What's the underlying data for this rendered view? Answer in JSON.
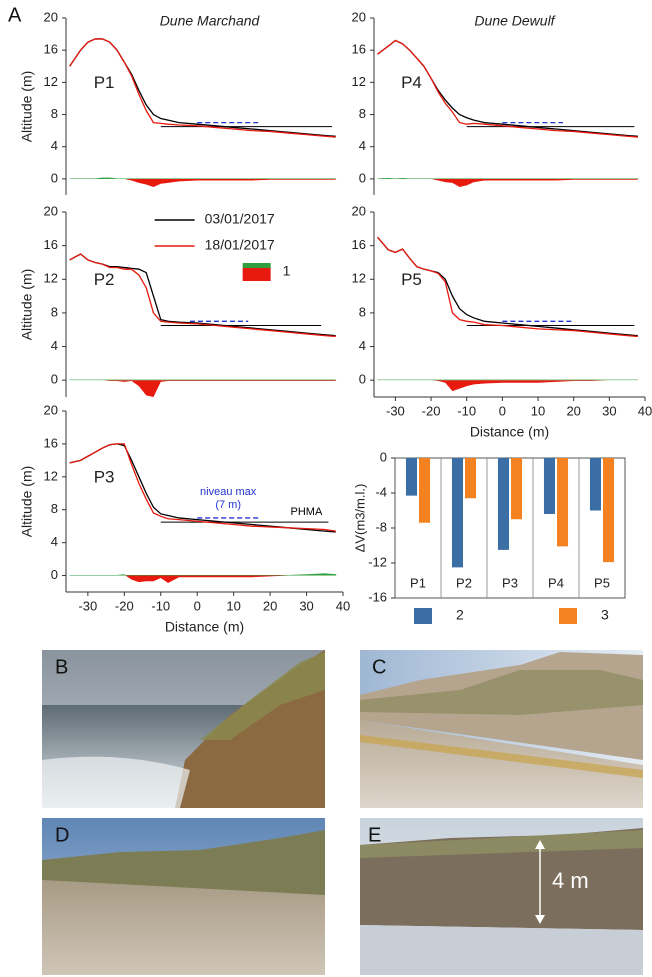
{
  "panel_label": "A",
  "chart_data": [
    {
      "type": "line",
      "label": "P1",
      "title": "Dune Marchand",
      "ylabel": "Altitude (m)",
      "x": [
        -35,
        -32,
        -30,
        -28,
        -26,
        -24,
        -22,
        -20,
        -18,
        -16,
        -14,
        -12,
        -10,
        -8,
        -5,
        0,
        5,
        10,
        15,
        20,
        25,
        30,
        35,
        38
      ],
      "xlim": [
        -36,
        40
      ],
      "ylim": [
        -2,
        20
      ],
      "yticks": [
        0,
        4,
        8,
        12,
        16,
        20
      ],
      "series": [
        {
          "color": "#000000",
          "values": [
            14,
            16,
            17,
            17.4,
            17.4,
            17,
            16,
            14.5,
            13,
            11,
            9.2,
            8,
            7.5,
            7.3,
            7,
            6.8,
            6.6,
            6.4,
            6.2,
            6,
            5.8,
            5.6,
            5.4,
            5.3
          ]
        },
        {
          "color": "#e8190f",
          "values": [
            14,
            16,
            17,
            17.4,
            17.4,
            17,
            16,
            14.5,
            12.8,
            10.5,
            8.5,
            7,
            6.9,
            6.8,
            6.7,
            6.6,
            6.4,
            6.2,
            6,
            5.9,
            5.7,
            5.5,
            5.3,
            5.2
          ]
        },
        {
          "color": "#e8190f",
          "positive_color": "#2e9e3e",
          "area": true,
          "values": [
            0,
            0,
            0,
            0,
            0.1,
            0.1,
            0,
            0,
            -0.2,
            -0.5,
            -0.7,
            -1,
            -0.6,
            -0.5,
            -0.3,
            -0.2,
            -0.2,
            -0.2,
            -0.2,
            -0.1,
            -0.1,
            -0.1,
            -0.1,
            -0.1
          ]
        }
      ],
      "reference_lines": [
        {
          "value": 7,
          "xrange": [
            0,
            17
          ],
          "color": "#2233cc",
          "dashed": true
        },
        {
          "value": 6.5,
          "xrange": [
            -10,
            37
          ],
          "color": "#000000"
        }
      ]
    },
    {
      "type": "line",
      "label": "P2",
      "ylabel": "Altitude (m)",
      "x": [
        -35,
        -32,
        -30,
        -28,
        -26,
        -24,
        -22,
        -20,
        -18,
        -16,
        -14,
        -12,
        -10,
        -8,
        -5,
        0,
        5,
        10,
        15,
        20,
        25,
        30,
        35,
        38
      ],
      "xlim": [
        -36,
        40
      ],
      "ylim": [
        -2,
        20
      ],
      "yticks": [
        0,
        4,
        8,
        12,
        16,
        20
      ],
      "series": [
        {
          "name": "03/01/2017",
          "color": "#000000",
          "values": [
            14.3,
            15,
            14.3,
            14,
            13.8,
            13.5,
            13.5,
            13.4,
            13.3,
            13.2,
            12.8,
            10,
            7.2,
            7,
            6.9,
            6.8,
            6.6,
            6.4,
            6.2,
            6,
            5.8,
            5.6,
            5.4,
            5.3
          ]
        },
        {
          "name": "18/01/2017",
          "color": "#e8190f",
          "values": [
            14.3,
            15,
            14.3,
            14,
            13.8,
            13.4,
            13.4,
            13.2,
            13.2,
            12.5,
            11,
            8,
            7,
            6.9,
            6.8,
            6.7,
            6.5,
            6.3,
            6.1,
            5.9,
            5.7,
            5.5,
            5.3,
            5.2
          ]
        },
        {
          "name": "1",
          "color": "#e8190f",
          "positive_color": "#2e9e3e",
          "area": true,
          "values": [
            0,
            0,
            0,
            0,
            0,
            -0.1,
            -0.1,
            -0.2,
            -0.1,
            -0.7,
            -1.8,
            -2,
            -0.2,
            -0.1,
            -0.1,
            -0.1,
            -0.1,
            -0.1,
            -0.1,
            -0.1,
            -0.1,
            -0.1,
            -0.1,
            -0.1
          ]
        }
      ],
      "reference_lines": [
        {
          "value": 7,
          "xrange": [
            -2,
            14
          ],
          "color": "#2233cc",
          "dashed": true
        },
        {
          "value": 6.5,
          "xrange": [
            -10,
            34
          ],
          "color": "#000000"
        }
      ]
    },
    {
      "type": "line",
      "label": "P3",
      "ylabel": "Altitude (m)",
      "xlabel": "Distance (m)",
      "x": [
        -35,
        -32,
        -30,
        -28,
        -26,
        -24,
        -22,
        -20,
        -18,
        -16,
        -14,
        -12,
        -10,
        -8,
        -5,
        0,
        5,
        10,
        15,
        20,
        25,
        30,
        35,
        38
      ],
      "xlim": [
        -36,
        40
      ],
      "ylim": [
        -2,
        20
      ],
      "yticks": [
        0,
        4,
        8,
        12,
        16,
        20
      ],
      "xticks": [
        -30,
        -20,
        -10,
        0,
        10,
        20,
        30,
        40
      ],
      "series": [
        {
          "color": "#000000",
          "values": [
            13.7,
            14,
            14.5,
            15,
            15.5,
            15.9,
            16,
            15.8,
            14,
            12,
            10,
            8.3,
            7.5,
            7.3,
            7,
            6.8,
            6.6,
            6.4,
            6.2,
            6,
            5.8,
            5.6,
            5.4,
            5.3
          ]
        },
        {
          "color": "#e8190f",
          "values": [
            13.7,
            14,
            14.5,
            15,
            15.5,
            15.9,
            16,
            16,
            13.5,
            11.2,
            9.3,
            7.6,
            7.2,
            6.9,
            6.8,
            6.6,
            6.4,
            6.2,
            6,
            5.9,
            5.8,
            5.7,
            5.6,
            5.4
          ]
        },
        {
          "color": "#e8190f",
          "positive_color": "#2e9e3e",
          "area": true,
          "values": [
            0,
            0,
            0,
            0,
            0,
            0,
            0,
            0.1,
            -0.5,
            -0.8,
            -0.7,
            -0.7,
            -0.3,
            -0.9,
            -0.2,
            -0.2,
            -0.2,
            -0.2,
            -0.2,
            -0.1,
            0,
            0.1,
            0.2,
            0.1
          ]
        }
      ],
      "reference_lines": [
        {
          "value": 7,
          "xrange": [
            0,
            17
          ],
          "color": "#2233cc",
          "dashed": true,
          "label": "niveau max",
          "sublabel": "(7 m)"
        },
        {
          "value": 6.5,
          "xrange": [
            -10,
            36
          ],
          "color": "#000000",
          "label": "PHMA"
        }
      ]
    },
    {
      "type": "line",
      "label": "P4",
      "title": "Dune Dewulf",
      "x": [
        -35,
        -32,
        -30,
        -28,
        -26,
        -24,
        -22,
        -20,
        -18,
        -16,
        -14,
        -12,
        -10,
        -8,
        -5,
        0,
        5,
        10,
        15,
        20,
        25,
        30,
        35,
        38
      ],
      "xlim": [
        -36,
        40
      ],
      "ylim": [
        -2,
        20
      ],
      "yticks": [
        0,
        4,
        8,
        12,
        16,
        20
      ],
      "series": [
        {
          "color": "#000000",
          "values": [
            15.5,
            16.5,
            17.2,
            16.8,
            16,
            15,
            14,
            12.5,
            11,
            9.8,
            8.8,
            8,
            7.6,
            7.3,
            7,
            6.8,
            6.6,
            6.4,
            6.2,
            6,
            5.8,
            5.6,
            5.4,
            5.3
          ]
        },
        {
          "color": "#e8190f",
          "values": [
            15.5,
            16.5,
            17.2,
            16.8,
            16,
            15,
            14,
            12.5,
            10.8,
            9.4,
            8.3,
            7,
            6.8,
            6.9,
            6.8,
            6.6,
            6.4,
            6.2,
            6,
            5.9,
            5.7,
            5.5,
            5.3,
            5.2
          ]
        },
        {
          "color": "#e8190f",
          "positive_color": "#2e9e3e",
          "area": true,
          "values": [
            0,
            0.05,
            0,
            0.05,
            0,
            0,
            0,
            0,
            -0.2,
            -0.4,
            -0.5,
            -1,
            -0.8,
            -0.4,
            -0.2,
            -0.2,
            -0.2,
            -0.2,
            -0.2,
            -0.1,
            -0.1,
            -0.1,
            -0.1,
            -0.1
          ]
        }
      ],
      "reference_lines": [
        {
          "value": 7,
          "xrange": [
            0,
            17
          ],
          "color": "#2233cc",
          "dashed": true
        },
        {
          "value": 6.5,
          "xrange": [
            -10,
            37
          ],
          "color": "#000000"
        }
      ]
    },
    {
      "type": "line",
      "label": "P5",
      "xlabel": "Distance (m)",
      "x": [
        -35,
        -32,
        -30,
        -28,
        -26,
        -24,
        -22,
        -20,
        -18,
        -16,
        -14,
        -12,
        -10,
        -8,
        -5,
        0,
        5,
        10,
        15,
        20,
        25,
        30,
        35,
        38
      ],
      "xlim": [
        -36,
        40
      ],
      "ylim": [
        -2,
        20
      ],
      "yticks": [
        0,
        4,
        8,
        12,
        16,
        20
      ],
      "xticks": [
        -30,
        -20,
        -10,
        0,
        10,
        20,
        30,
        40
      ],
      "series": [
        {
          "color": "#000000",
          "values": [
            17,
            15.5,
            15.2,
            15.6,
            14.5,
            13.5,
            13.2,
            13,
            12.8,
            12,
            10,
            8.5,
            7.8,
            7.4,
            7,
            6.8,
            6.6,
            6.4,
            6.2,
            6,
            5.8,
            5.6,
            5.4,
            5.3
          ]
        },
        {
          "color": "#e8190f",
          "values": [
            17,
            15.5,
            15.2,
            15.6,
            14.5,
            13.5,
            13.2,
            13,
            12.7,
            11.7,
            8,
            7.2,
            7,
            6.9,
            6.6,
            6.5,
            6.3,
            6.1,
            6,
            5.9,
            5.7,
            5.5,
            5.3,
            5.2
          ]
        },
        {
          "color": "#e8190f",
          "positive_color": "#2e9e3e",
          "area": true,
          "values": [
            0,
            0,
            0,
            0,
            0,
            0,
            0,
            0,
            -0.1,
            -0.3,
            -1.3,
            -1,
            -0.7,
            -0.5,
            -0.4,
            -0.3,
            -0.3,
            -0.3,
            -0.2,
            -0.1,
            -0.1,
            0,
            0,
            0
          ]
        }
      ],
      "reference_lines": [
        {
          "value": 7,
          "xrange": [
            0,
            20
          ],
          "color": "#2233cc",
          "dashed": true
        },
        {
          "value": 6.5,
          "xrange": [
            -10,
            37
          ],
          "color": "#000000"
        }
      ]
    },
    {
      "type": "bar",
      "ylabel": "ΔV(m3/m.l.)",
      "categories": [
        "P1",
        "P2",
        "P3",
        "P4",
        "P5"
      ],
      "ylim": [
        -16,
        0
      ],
      "yticks": [
        -16,
        -12,
        -8,
        -4,
        0
      ],
      "series": [
        {
          "name": "2",
          "color": "#3a6ea5",
          "values": [
            -4.3,
            -12.5,
            -10.5,
            -6.4,
            -6
          ]
        },
        {
          "name": "3",
          "color": "#f58220",
          "values": [
            -7.4,
            -4.6,
            -7,
            -10.1,
            -11.9
          ]
        }
      ]
    }
  ],
  "photos": [
    {
      "label": "B"
    },
    {
      "label": "C"
    },
    {
      "label": "D"
    },
    {
      "label": "E",
      "annotation": "4 m"
    }
  ]
}
